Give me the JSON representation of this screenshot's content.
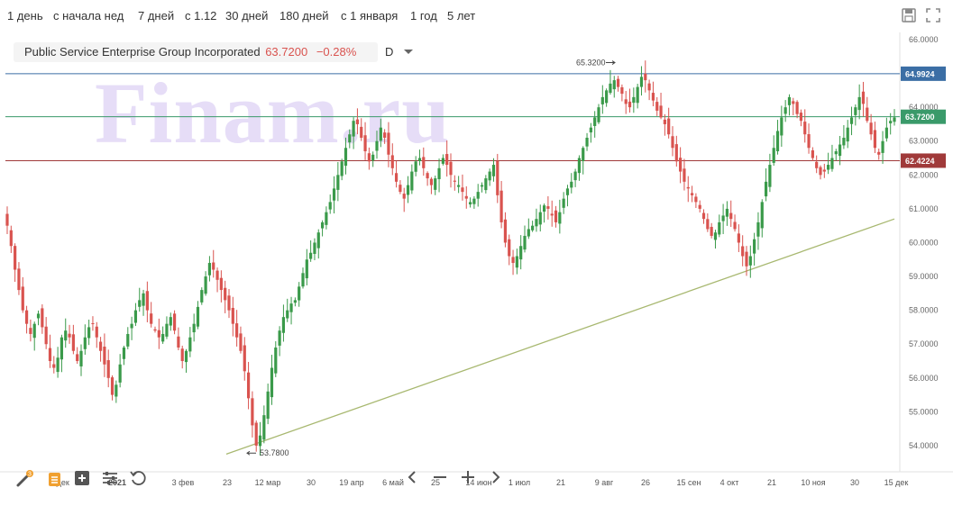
{
  "toolbar": {
    "periods": [
      "1 день",
      "с начала нед",
      "7 дней",
      "с 1.12",
      "30 дней",
      "180 дней",
      "с 1 января",
      "1 год",
      "5 лет"
    ]
  },
  "legend": {
    "name": "Public Service Enterprise Group Incorporated",
    "price": "63.7200",
    "change": "−0.28%",
    "interval": "D"
  },
  "watermark": "Finam.ru",
  "colors": {
    "up": "#3a9a4a",
    "down": "#d9534f",
    "blue_line": "#3b6ea5",
    "green_line": "#3a9a6a",
    "red_line": "#a03a3a",
    "trend": "#a8b870"
  },
  "chart_data": {
    "type": "candlestick",
    "ylim": [
      53.6,
      66.0
    ],
    "y_ticks": [
      "66.0000",
      "65.0000",
      "64.0000",
      "63.0000",
      "62.0000",
      "61.0000",
      "60.0000",
      "59.0000",
      "58.0000",
      "57.0000",
      "56.0000",
      "55.0000",
      "54.0000"
    ],
    "x_ticks": [
      "7 дек",
      "2021",
      "3 фев",
      "23",
      "12 мар",
      "30",
      "19 апр",
      "6 май",
      "25",
      "14 июн",
      "1 июл",
      "21",
      "9 авг",
      "26",
      "15 сен",
      "4 окт",
      "21",
      "10 ноя",
      "30",
      "15 дек"
    ],
    "horizontal_levels": [
      {
        "label": "64.9924",
        "value": 64.9924,
        "color": "#3b6ea5"
      },
      {
        "label": "63.7200",
        "value": 63.72,
        "color": "#3a9a6a"
      },
      {
        "label": "62.4224",
        "value": 62.4224,
        "color": "#a03a3a"
      }
    ],
    "annotations": [
      {
        "label": "65.3200",
        "value": 65.32
      },
      {
        "label": "53.7800",
        "value": 53.78
      }
    ],
    "trendline": {
      "from": 53.75,
      "to": 60.7
    },
    "closes": [
      60.5,
      59.9,
      59.2,
      58.6,
      58.0,
      57.6,
      57.3,
      57.6,
      57.9,
      57.5,
      57.0,
      56.5,
      56.3,
      56.6,
      57.2,
      57.4,
      57.2,
      56.8,
      56.5,
      56.8,
      57.2,
      57.5,
      57.6,
      57.2,
      56.8,
      56.4,
      56.0,
      55.5,
      55.8,
      56.4,
      56.9,
      57.3,
      57.6,
      58.0,
      58.3,
      58.5,
      58.0,
      57.6,
      57.4,
      57.2,
      57.3,
      57.6,
      57.8,
      57.4,
      56.9,
      56.5,
      56.8,
      57.2,
      57.6,
      58.1,
      58.6,
      59.0,
      59.4,
      59.2,
      58.9,
      58.6,
      58.3,
      58.0,
      57.6,
      57.2,
      56.8,
      56.2,
      55.4,
      54.6,
      54.0,
      54.3,
      54.9,
      55.6,
      56.3,
      56.9,
      57.4,
      57.8,
      58.0,
      58.2,
      58.3,
      58.7,
      59.1,
      59.5,
      59.7,
      60.0,
      60.3,
      60.6,
      60.9,
      61.2,
      61.6,
      62.0,
      62.4,
      62.8,
      63.2,
      63.6,
      63.5,
      63.1,
      62.7,
      62.4,
      62.6,
      63.0,
      63.4,
      63.1,
      62.6,
      62.2,
      61.8,
      61.5,
      61.3,
      61.7,
      62.1,
      62.4,
      62.5,
      62.2,
      61.9,
      61.7,
      61.9,
      62.2,
      62.5,
      62.3,
      62.0,
      61.8,
      61.7,
      61.5,
      61.3,
      61.2,
      61.3,
      61.5,
      61.7,
      61.9,
      62.1,
      62.3,
      61.4,
      60.6,
      60.0,
      59.6,
      59.4,
      59.6,
      59.9,
      60.2,
      60.4,
      60.5,
      60.7,
      60.9,
      61.1,
      61.0,
      60.8,
      60.6,
      60.9,
      61.3,
      61.6,
      61.8,
      62.1,
      62.5,
      62.8,
      63.1,
      63.4,
      63.7,
      64.0,
      64.3,
      64.5,
      64.7,
      64.8,
      64.6,
      64.4,
      64.1,
      64.0,
      64.3,
      64.6,
      64.9,
      64.8,
      64.5,
      64.2,
      63.9,
      63.7,
      63.5,
      63.2,
      62.8,
      62.4,
      62.1,
      61.8,
      61.6,
      61.4,
      61.2,
      61.0,
      60.7,
      60.4,
      60.2,
      60.3,
      60.6,
      60.8,
      61.0,
      60.7,
      60.4,
      60.0,
      59.6,
      59.3,
      59.6,
      60.1,
      60.6,
      61.2,
      61.8,
      62.3,
      62.8,
      63.3,
      63.7,
      64.0,
      64.3,
      64.1,
      63.8,
      63.6,
      63.2,
      62.8,
      62.5,
      62.2,
      62.0,
      62.1,
      62.3,
      62.5,
      62.7,
      62.9,
      63.1,
      63.4,
      63.7,
      64.0,
      64.3,
      64.1,
      63.6,
      63.2,
      62.8,
      62.6,
      63.0,
      63.4,
      63.6,
      63.7
    ]
  }
}
